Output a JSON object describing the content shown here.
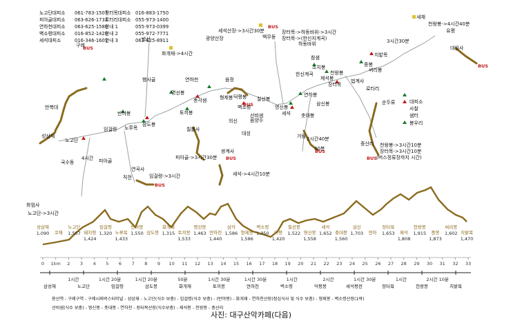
{
  "offices": [
    {
      "name": "노고단대피소",
      "phone": "061-783-1507"
    },
    {
      "name": "피아골대피소",
      "phone": "063-626-1732"
    },
    {
      "name": "연하천대피소",
      "phone": "063-625-1586"
    },
    {
      "name": "벽소령대피소",
      "phone": "016-852-1426"
    },
    {
      "name": "세석대피소",
      "phone": "016-346-1601"
    }
  ],
  "offices2": [
    {
      "name": "장터목대피소",
      "phone": "016-883-1750"
    },
    {
      "name": "로터리대피소",
      "phone": "055-973-1400"
    },
    {
      "name": "안내 1",
      "phone": "055-973-0399"
    },
    {
      "name": "안내 2",
      "phone": "055-972-7771"
    },
    {
      "name": "안내 3",
      "phone": "063-625-8911"
    }
  ],
  "legend": {
    "items": [
      "대피소",
      "사찰",
      "봉우리",
      "샘터"
    ]
  },
  "map_labels": [
    {
      "text": "노고단",
      "c": "brown"
    },
    {
      "text": "성삼재"
    },
    {
      "text": "만복대"
    },
    {
      "text": "구례"
    },
    {
      "text": "4시간"
    },
    {
      "text": "국수동"
    },
    {
      "text": "화엄사"
    },
    {
      "text": "노고단->3시간"
    },
    {
      "text": "임걸령"
    },
    {
      "text": "피아골"
    },
    {
      "text": "반야봉"
    },
    {
      "text": "뱀사골"
    },
    {
      "text": "삼도봉"
    },
    {
      "text": "노루목"
    },
    {
      "text": "토끼봉"
    },
    {
      "text": "화개재->4시간"
    },
    {
      "text": "반선"
    },
    {
      "text": "명선봉"
    },
    {
      "text": "연하천"
    },
    {
      "text": "총각샘"
    },
    {
      "text": "형제봉"
    },
    {
      "text": "벽소령"
    },
    {
      "text": "음정"
    },
    {
      "text": "덕평봉"
    },
    {
      "text": "칠선봉"
    },
    {
      "text": "선비샘"
    },
    {
      "text": "영신봉"
    },
    {
      "text": "세석"
    },
    {
      "text": "촛대봉"
    },
    {
      "text": "삼신봉"
    },
    {
      "text": "연하봉"
    },
    {
      "text": "장터목"
    },
    {
      "text": "제석봉"
    },
    {
      "text": "천왕봉"
    },
    {
      "text": "중봉"
    },
    {
      "text": "써리봉"
    },
    {
      "text": "치밭목"
    },
    {
      "text": "로타리"
    },
    {
      "text": "순두류"
    },
    {
      "text": "중산리"
    },
    {
      "text": "법계사"
    },
    {
      "text": "소지봉"
    },
    {
      "text": "참샘"
    },
    {
      "text": "하동바위"
    },
    {
      "text": "백무동"
    },
    {
      "text": "세석산장->3시간30분"
    },
    {
      "text": "장터목->하동바위->3시간"
    },
    {
      "text": "장터목->(한신지계곡)"
    },
    {
      "text": "천왕봉->4시간40분"
    },
    {
      "text": "대원사"
    },
    {
      "text": "유평"
    },
    {
      "text": "새재"
    },
    {
      "text": "천왕봉->3시간10분"
    },
    {
      "text": "장터목->3시간10분"
    },
    {
      "text": "(버스정류장까지 시간)"
    },
    {
      "text": "세석->4시간10분"
    },
    {
      "text": "의신"
    },
    {
      "text": "대성"
    },
    {
      "text": "임걸령->3시간"
    },
    {
      "text": "연곡사"
    },
    {
      "text": "직전"
    },
    {
      "text": "피아골->3시간30분"
    },
    {
      "text": "음양수"
    },
    {
      "text": "거림"
    },
    {
      "text": "2시간40분"
    },
    {
      "text": "40분"
    },
    {
      "text": "광양산장"
    },
    {
      "text": "3시간30분"
    },
    {
      "text": "한신계곡"
    },
    {
      "text": "칠불사"
    },
    {
      "text": "쌍계사"
    }
  ],
  "profile": {
    "points": [
      {
        "name": "성삼재",
        "alt": "1,090"
      },
      {
        "name": "코재",
        "alt": ""
      },
      {
        "name": "노고단",
        "alt": "1,507"
      },
      {
        "name": "돼지령",
        "alt": "1,424"
      },
      {
        "name": "임걸령",
        "alt": "1,320"
      },
      {
        "name": "노루목",
        "alt": "1,433"
      },
      {
        "name": "반야봉",
        "alt": "1,550"
      },
      {
        "name": "삼도봉",
        "alt": ""
      },
      {
        "name": "화개재",
        "alt": "1,315"
      },
      {
        "name": "토끼봉",
        "alt": "1,533"
      },
      {
        "name": "명선봉",
        "alt": "1,463"
      },
      {
        "name": "연하천",
        "alt": "1,440"
      },
      {
        "name": "삼각",
        "alt": "1,586"
      },
      {
        "name": "형제봉",
        "alt": "1,586"
      },
      {
        "name": "벽소령",
        "alt": "1,350"
      },
      {
        "name": "덕평",
        "alt": "1,420"
      },
      {
        "name": "칠선봉",
        "alt": "1,522"
      },
      {
        "name": "영신봉",
        "alt": "1,558"
      },
      {
        "name": "세석",
        "alt": "1,652"
      },
      {
        "name": "촛대봉",
        "alt": "1,560"
      },
      {
        "name": "삼신",
        "alt": "1,703"
      },
      {
        "name": "연하",
        "alt": ""
      },
      {
        "name": "장터목",
        "alt": "1,653"
      },
      {
        "name": "제석",
        "alt": "1,808"
      },
      {
        "name": "천왕봉",
        "alt": "1,915"
      },
      {
        "name": "중봉",
        "alt": "1,873"
      },
      {
        "name": "써리봉",
        "alt": "1,602"
      },
      {
        "name": "치밭목",
        "alt": "1,470"
      }
    ],
    "axis_ticks": [
      "0",
      "1km",
      "2",
      "3",
      "4",
      "5",
      "6",
      "7",
      "8",
      "9",
      "10",
      "11",
      "12",
      "13",
      "14",
      "15",
      "16",
      "17",
      "18",
      "19",
      "20",
      "21",
      "22",
      "23",
      "24",
      "25",
      "26",
      "27",
      "28",
      "29",
      "30",
      "31",
      "32",
      "33"
    ],
    "segments": [
      {
        "from": "성삼재",
        "dur": "1시간"
      },
      {
        "from": "노고단",
        "dur": "1시간 20분"
      },
      {
        "from": "임걸령",
        "dur": "1시간 20분"
      },
      {
        "from": "화개재",
        "dur": "50분"
      },
      {
        "from": "토끼봉",
        "dur": "1시간 30분"
      },
      {
        "from": "연하천",
        "dur": "1시간 30분"
      },
      {
        "from": "벽소령",
        "dur": "1시간"
      },
      {
        "from": "덕평봉",
        "dur": "2시간"
      },
      {
        "from": "세석",
        "dur": "1시간 30분"
      },
      {
        "from": "장터목",
        "dur": "1시간"
      },
      {
        "from": "천왕봉",
        "dur": "2시간 10분"
      }
    ],
    "bottom_places": [
      "삼성재",
      "노고단",
      "임걸령",
      "삼도봉",
      "화개재",
      "토끼봉",
      "연하천",
      "벽소령",
      "덕평봉",
      "세석평전",
      "장터목",
      "천왕봉",
      "치밭목"
    ]
  },
  "footer": {
    "line1": "용산역 - 구례구역 - 구례시외버스터미널 - 성삼재 - 노고단(식수 보충) - 임걸령(식수 보충) - (반야봉) - 화개재 - 연하천산장(점심식사 및 식수 보충) - 형제봉 - 벽소령산장(1박)",
    "line2": "선비샘(식수 보충) - 영신봉 - 촛대봉 - 연하천 - 장터목산장(식수보충) - 제석봉 - 천왕봉 - 중산리",
    "watermark": "사진: 대구산악카페(다음)"
  }
}
